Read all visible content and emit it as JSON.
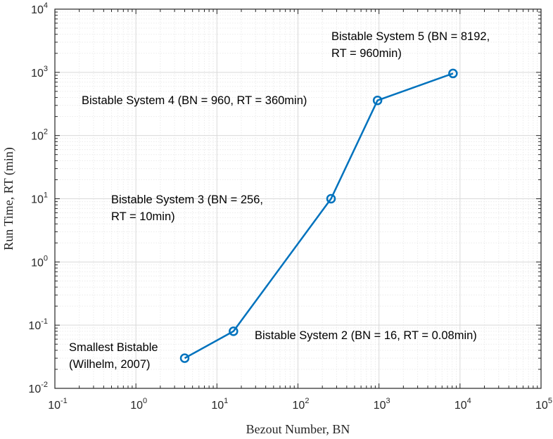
{
  "chart_data": {
    "type": "line",
    "title": "",
    "xlabel": "Bezout Number, BN",
    "ylabel": "Run Time, RT (min)",
    "x_scale": "log",
    "y_scale": "log",
    "xlim": [
      0.1,
      100000
    ],
    "ylim": [
      0.01,
      10000
    ],
    "grid": true,
    "minor_grid": true,
    "legend": "none",
    "series_color": "#0072BD",
    "x_ticks": [
      {
        "base": "10",
        "exp": "-1",
        "value": 0.1
      },
      {
        "base": "10",
        "exp": "0",
        "value": 1
      },
      {
        "base": "10",
        "exp": "1",
        "value": 10
      },
      {
        "base": "10",
        "exp": "2",
        "value": 100
      },
      {
        "base": "10",
        "exp": "3",
        "value": 1000
      },
      {
        "base": "10",
        "exp": "4",
        "value": 10000
      },
      {
        "base": "10",
        "exp": "5",
        "value": 100000
      }
    ],
    "y_ticks": [
      {
        "base": "10",
        "exp": "-2",
        "value": 0.01
      },
      {
        "base": "10",
        "exp": "-1",
        "value": 0.1
      },
      {
        "base": "10",
        "exp": "0",
        "value": 1
      },
      {
        "base": "10",
        "exp": "1",
        "value": 10
      },
      {
        "base": "10",
        "exp": "2",
        "value": 100
      },
      {
        "base": "10",
        "exp": "3",
        "value": 1000
      },
      {
        "base": "10",
        "exp": "4",
        "value": 10000
      }
    ],
    "series": [
      {
        "points": [
          {
            "x": 4,
            "y": 0.03
          },
          {
            "x": 16,
            "y": 0.08
          },
          {
            "x": 256,
            "y": 10
          },
          {
            "x": 960,
            "y": 360
          },
          {
            "x": 8192,
            "y": 960
          }
        ]
      }
    ],
    "annotations": [
      {
        "lines": [
          "Smallest Bistable",
          "(Wilhelm, 2007)"
        ],
        "x": 4,
        "y": 0.03
      },
      {
        "lines": [
          "Bistable System 2 (BN = 16, RT = 0.08min)"
        ],
        "x": 16,
        "y": 0.08
      },
      {
        "lines": [
          "Bistable System 3 (BN = 256,",
          "RT = 10min)"
        ],
        "x": 256,
        "y": 10
      },
      {
        "lines": [
          "Bistable System 4 (BN = 960, RT = 360min)"
        ],
        "x": 960,
        "y": 360
      },
      {
        "lines": [
          "Bistable System 5 (BN = 8192,",
          "RT = 960min)"
        ],
        "x": 8192,
        "y": 960
      }
    ]
  }
}
